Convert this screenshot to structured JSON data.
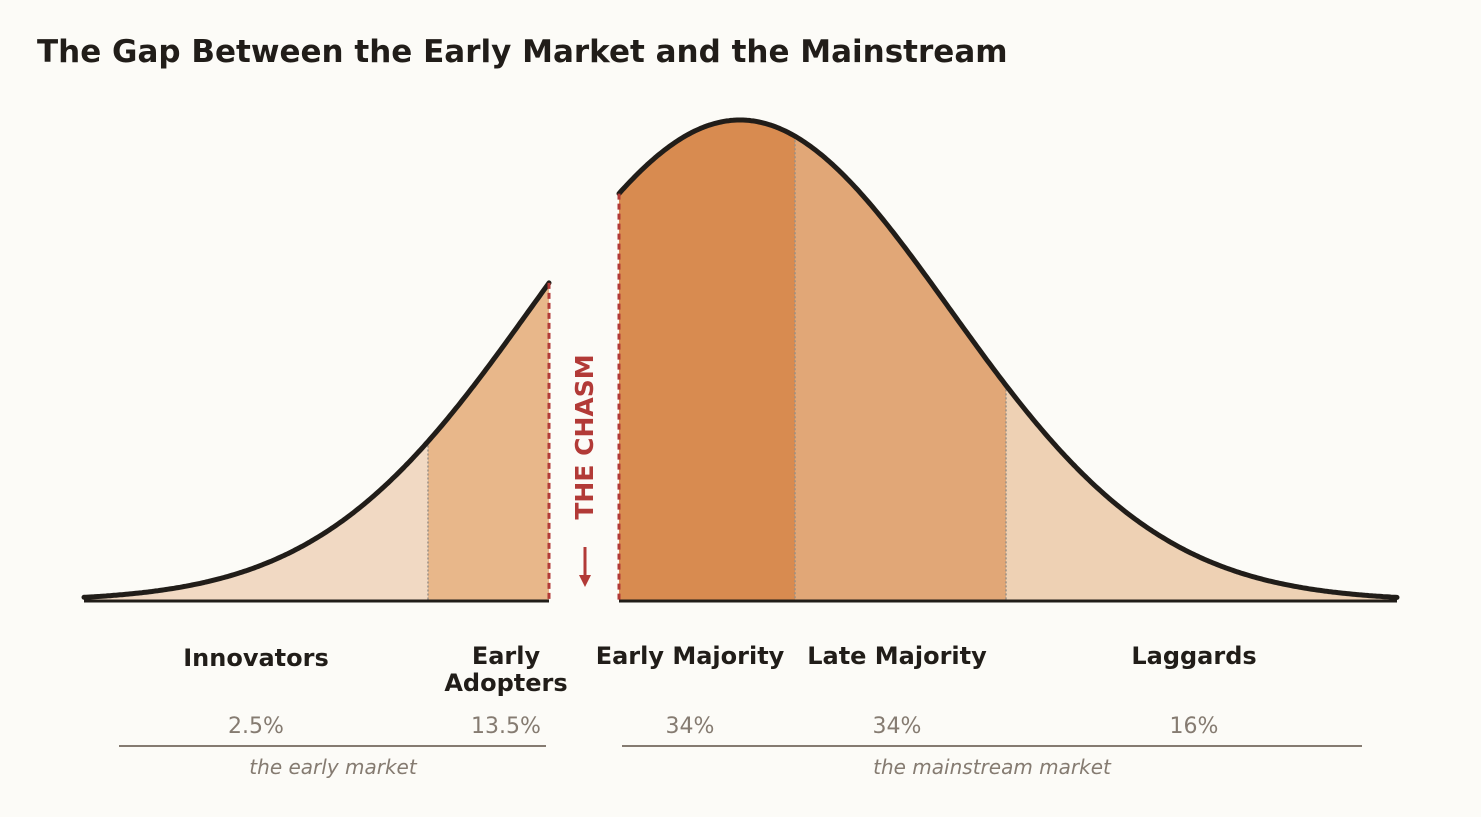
{
  "title": "The Gap Between the Early Market and the Mainstream",
  "chasm_label": "THE CHASM",
  "segments": [
    {
      "name": "Innovators",
      "share": "2.5%",
      "color": "#f1d9c3"
    },
    {
      "name": "Early Adopters",
      "name_lines": [
        "Early",
        "Adopters"
      ],
      "share": "13.5%",
      "color": "#e8b78a"
    },
    {
      "name": "Early Majority",
      "share": "34%",
      "color": "#d88b50"
    },
    {
      "name": "Late Majority",
      "share": "34%",
      "color": "#e1a777"
    },
    {
      "name": "Laggards",
      "share": "16%",
      "color": "#eed1b4"
    }
  ],
  "markets": {
    "early": "the early market",
    "mainstream": "the mainstream market"
  },
  "colors": {
    "curve": "#211d19",
    "chasm": "#b23a37",
    "muted": "#857b71",
    "text": "#211d19",
    "divider": "#9a8f84"
  }
}
